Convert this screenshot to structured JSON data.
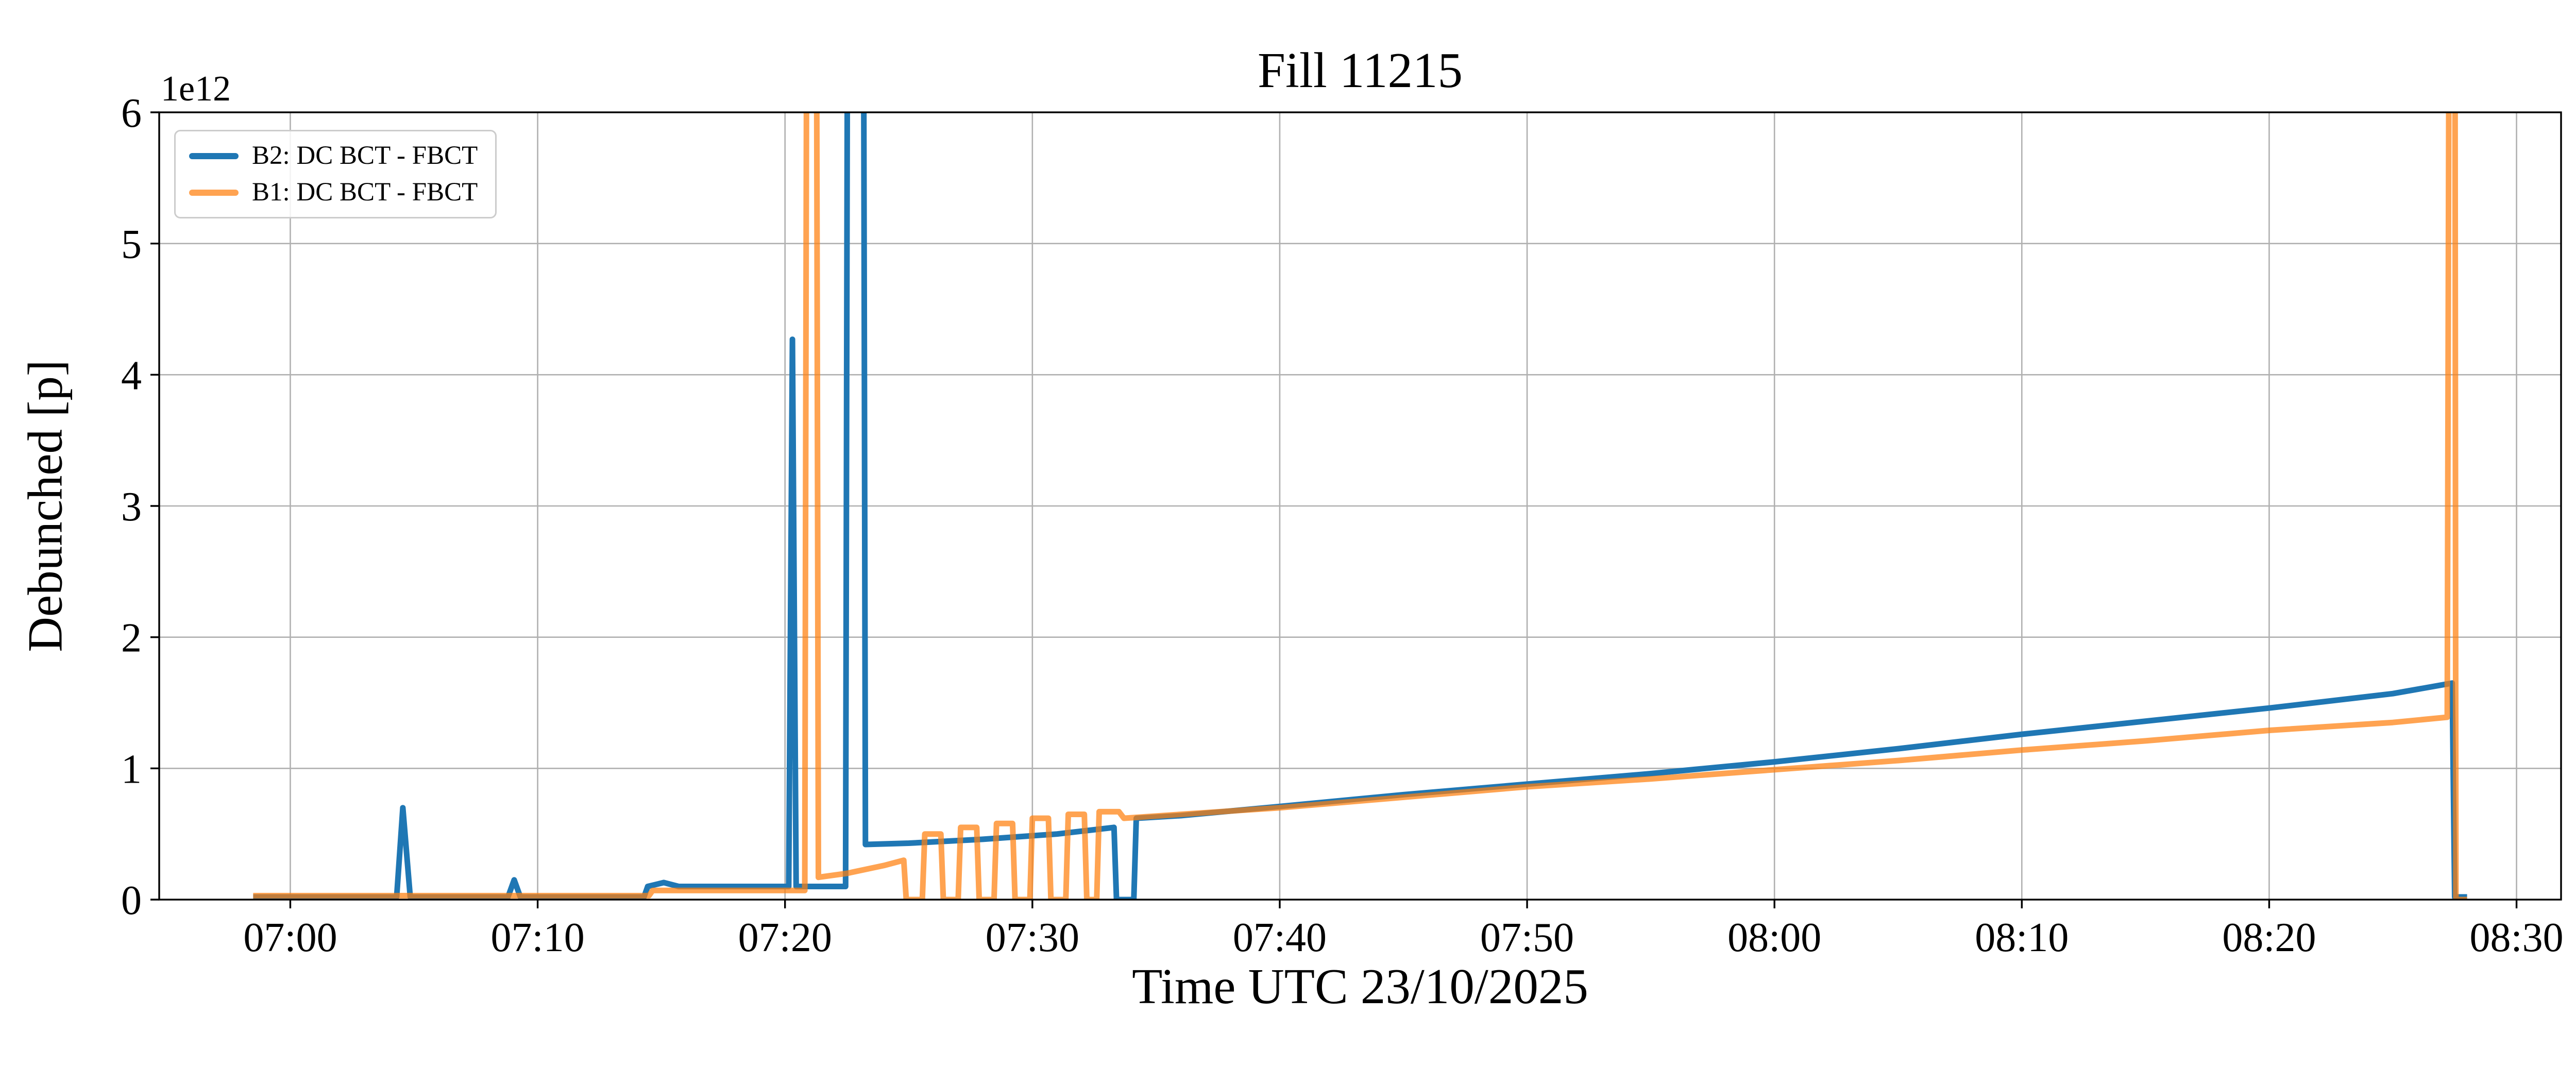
{
  "chart_data": {
    "type": "line",
    "title": "Fill 11215",
    "xlabel": "Time UTC 23/10/2025",
    "ylabel": "Debunched [p]",
    "y_offset_label": "1e12",
    "x_unit": "minutes since 07:00 UTC",
    "y_unit": "protons (value shown times 1e12)",
    "grid": true,
    "legend_position": "upper left",
    "xlim": [
      -5.3,
      91.8
    ],
    "ylim": [
      0,
      6
    ],
    "xticks": [
      0,
      10,
      20,
      30,
      40,
      50,
      60,
      70,
      80,
      90
    ],
    "xtick_labels": [
      "07:00",
      "07:10",
      "07:20",
      "07:30",
      "07:40",
      "07:50",
      "08:00",
      "08:10",
      "08:20",
      "08:30"
    ],
    "yticks": [
      0,
      1,
      2,
      3,
      4,
      5,
      6
    ],
    "ytick_labels": [
      "0",
      "1",
      "2",
      "3",
      "4",
      "5",
      "6"
    ],
    "series": [
      {
        "id": "b2",
        "name": "B2: DC BCT - FBCT",
        "color": "#1f77b4",
        "opacity": 1,
        "points": [
          [
            -1.5,
            0.02
          ],
          [
            4.3,
            0.02
          ],
          [
            4.55,
            0.7
          ],
          [
            4.85,
            0.02
          ],
          [
            8.8,
            0.02
          ],
          [
            9.05,
            0.15
          ],
          [
            9.3,
            0.02
          ],
          [
            14.3,
            0.02
          ],
          [
            14.45,
            0.1
          ],
          [
            15.1,
            0.13
          ],
          [
            15.7,
            0.1
          ],
          [
            20.15,
            0.1
          ],
          [
            20.3,
            4.27
          ],
          [
            20.45,
            0.1
          ],
          [
            22.45,
            0.1
          ],
          [
            22.55,
            9
          ],
          [
            23.15,
            9
          ],
          [
            23.25,
            0.42
          ],
          [
            25,
            0.43
          ],
          [
            28,
            0.46
          ],
          [
            31,
            0.5
          ],
          [
            33.3,
            0.55
          ],
          [
            33.4,
            0.0
          ],
          [
            34.1,
            0.0
          ],
          [
            34.2,
            0.62
          ],
          [
            36,
            0.64
          ],
          [
            40,
            0.71
          ],
          [
            45,
            0.8
          ],
          [
            50,
            0.88
          ],
          [
            55,
            0.96
          ],
          [
            60,
            1.05
          ],
          [
            65,
            1.15
          ],
          [
            70,
            1.26
          ],
          [
            75,
            1.36
          ],
          [
            80,
            1.46
          ],
          [
            85,
            1.57
          ],
          [
            87.4,
            1.65
          ],
          [
            87.5,
            0.02
          ],
          [
            88.0,
            0.02
          ]
        ]
      },
      {
        "id": "b1",
        "name": "B1: DC BCT - FBCT",
        "color": "#ff7f0e",
        "opacity": 0.72,
        "points": [
          [
            -1.5,
            0.03
          ],
          [
            14.5,
            0.03
          ],
          [
            14.65,
            0.07
          ],
          [
            20.8,
            0.07
          ],
          [
            20.9,
            9
          ],
          [
            21.25,
            9
          ],
          [
            21.35,
            0.17
          ],
          [
            22.5,
            0.2
          ],
          [
            24.0,
            0.26
          ],
          [
            24.8,
            0.3
          ],
          [
            24.9,
            0.0
          ],
          [
            25.55,
            0.0
          ],
          [
            25.65,
            0.5
          ],
          [
            26.3,
            0.5
          ],
          [
            26.4,
            0.0
          ],
          [
            27.0,
            0.0
          ],
          [
            27.1,
            0.55
          ],
          [
            27.75,
            0.55
          ],
          [
            27.85,
            0.0
          ],
          [
            28.45,
            0.0
          ],
          [
            28.55,
            0.58
          ],
          [
            29.2,
            0.58
          ],
          [
            29.3,
            0.0
          ],
          [
            29.9,
            0.0
          ],
          [
            30.0,
            0.62
          ],
          [
            30.65,
            0.62
          ],
          [
            30.75,
            0.0
          ],
          [
            31.35,
            0.0
          ],
          [
            31.45,
            0.65
          ],
          [
            32.1,
            0.65
          ],
          [
            32.2,
            0.0
          ],
          [
            32.6,
            0.0
          ],
          [
            32.7,
            0.67
          ],
          [
            33.5,
            0.67
          ],
          [
            33.7,
            0.62
          ],
          [
            36,
            0.65
          ],
          [
            40,
            0.7
          ],
          [
            45,
            0.78
          ],
          [
            50,
            0.86
          ],
          [
            55,
            0.92
          ],
          [
            60,
            0.99
          ],
          [
            65,
            1.06
          ],
          [
            70,
            1.14
          ],
          [
            75,
            1.21
          ],
          [
            80,
            1.29
          ],
          [
            85,
            1.35
          ],
          [
            87.2,
            1.39
          ],
          [
            87.3,
            9
          ],
          [
            87.5,
            9
          ],
          [
            87.55,
            0.0
          ],
          [
            88.0,
            0.0
          ]
        ]
      }
    ]
  }
}
